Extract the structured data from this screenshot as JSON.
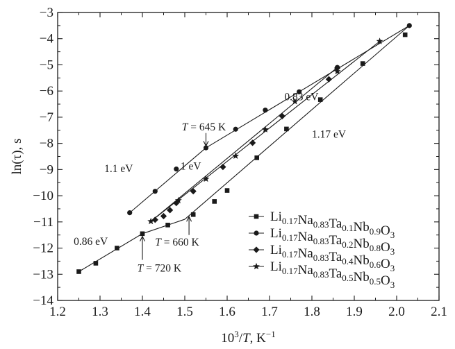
{
  "chart_data": {
    "type": "scatter",
    "xlabel": "10^3/T, K^-1",
    "ylabel": "ln(τ), s",
    "xlim": [
      1.2,
      2.1
    ],
    "ylim": [
      -14,
      -3
    ],
    "xticks": [
      1.2,
      1.3,
      1.4,
      1.5,
      1.6,
      1.7,
      1.8,
      1.9,
      2.0,
      2.1
    ],
    "yticks": [
      -3,
      -4,
      -5,
      -6,
      -7,
      -8,
      -9,
      -10,
      -11,
      -12,
      -13,
      -14
    ],
    "xtick_labels": [
      "1.2",
      "1.3",
      "1.4",
      "1.5",
      "1.6",
      "1.7",
      "1.8",
      "1.9",
      "2.0",
      "2.1"
    ],
    "ytick_labels": [
      "−3",
      "−4",
      "−5",
      "−6",
      "−7",
      "−8",
      "−9",
      "−10",
      "−11",
      "−12",
      "−13",
      "−14"
    ],
    "legend_position": "bottom-right",
    "series": [
      {
        "name": "Li0.17Na0.83Ta0.1Nb0.9O3",
        "legend": {
          "segments": [
            [
              "Li",
              "0.17"
            ],
            [
              "Na",
              "0.83"
            ],
            [
              "Ta",
              "0.1"
            ],
            [
              "Nb",
              "0.9"
            ],
            [
              "O",
              "3"
            ]
          ]
        },
        "marker": "square",
        "x": [
          1.25,
          1.29,
          1.34,
          1.4,
          1.46,
          1.52,
          1.57,
          1.6,
          1.67,
          1.74,
          1.82,
          1.92,
          2.02
        ],
        "y": [
          -12.9,
          -12.58,
          -12.0,
          -11.45,
          -11.12,
          -10.72,
          -10.22,
          -9.8,
          -8.55,
          -7.45,
          -6.33,
          -4.95,
          -3.85
        ],
        "fit_lines": [
          {
            "x": [
              1.25,
              1.4,
              1.5
            ],
            "y": [
              -12.9,
              -11.45,
              -10.9
            ]
          },
          {
            "x": [
              1.5,
              2.03
            ],
            "y": [
              -10.9,
              -3.5
            ]
          }
        ]
      },
      {
        "name": "Li0.17Na0.83Ta0.2Nb0.8O3",
        "legend": {
          "segments": [
            [
              "Li",
              "0.17"
            ],
            [
              "Na",
              "0.83"
            ],
            [
              "Ta",
              "0.2"
            ],
            [
              "Nb",
              "0.8"
            ],
            [
              "O",
              "3"
            ]
          ]
        },
        "marker": "circle",
        "x": [
          1.37,
          1.43,
          1.48,
          1.55,
          1.62,
          1.69,
          1.77,
          1.86,
          2.03
        ],
        "y": [
          -10.65,
          -9.83,
          -8.98,
          -8.17,
          -7.46,
          -6.73,
          -6.03,
          -5.1,
          -3.5
        ],
        "fit_lines": [
          {
            "x": [
              1.37,
              1.55
            ],
            "y": [
              -10.65,
              -8.17
            ]
          },
          {
            "x": [
              1.55,
              2.03
            ],
            "y": [
              -8.17,
              -3.5
            ]
          }
        ]
      },
      {
        "name": "Li0.17Na0.83Ta0.4Nb0.6O3",
        "legend": {
          "segments": [
            [
              "Li",
              "0.17"
            ],
            [
              "Na",
              "0.83"
            ],
            [
              "Ta",
              "0.4"
            ],
            [
              "Nb",
              "0.6"
            ],
            [
              "O",
              "3"
            ]
          ]
        },
        "marker": "diamond",
        "x": [
          1.43,
          1.45,
          1.465,
          1.48,
          1.52,
          1.59,
          1.66,
          1.73,
          1.84,
          1.86
        ],
        "y": [
          -10.92,
          -10.78,
          -10.55,
          -10.28,
          -9.83,
          -8.9,
          -7.98,
          -6.96,
          -5.55,
          -5.12
        ],
        "fit_lines": [
          {
            "x": [
              1.42,
              1.86
            ],
            "y": [
              -10.98,
              -5.1
            ]
          }
        ]
      },
      {
        "name": "Li0.17Na0.83Ta0.5Nb0.5O3",
        "legend": {
          "segments": [
            [
              "Li",
              "0.17"
            ],
            [
              "Na",
              "0.83"
            ],
            [
              "Ta",
              "0.5"
            ],
            [
              "Nb",
              "0.5"
            ],
            [
              "O",
              "3"
            ]
          ]
        },
        "marker": "star",
        "x": [
          1.42,
          1.485,
          1.55,
          1.62,
          1.69,
          1.76,
          1.86,
          1.96
        ],
        "y": [
          -10.98,
          -10.18,
          -9.36,
          -8.48,
          -7.47,
          -6.4,
          -5.25,
          -4.1
        ],
        "fit_lines": [
          {
            "x": [
              1.42,
              1.96
            ],
            "y": [
              -10.98,
              -4.1
            ]
          }
        ]
      }
    ],
    "annotations": [
      {
        "text": "0.83 eV",
        "x": 1.735,
        "y": -6.35,
        "anchor": "start"
      },
      {
        "text": "1.17 eV",
        "x": 1.8,
        "y": -7.78,
        "anchor": "start"
      },
      {
        "text": "T = 645 K",
        "x": 1.545,
        "y": -7.5,
        "anchor": "middle",
        "arrow_to": [
          1.55,
          -8.1
        ]
      },
      {
        "text": "1.1 eV",
        "x": 1.31,
        "y": -9.1,
        "anchor": "start"
      },
      {
        "text": "1 eV",
        "x": 1.49,
        "y": -9.0,
        "anchor": "start"
      },
      {
        "text": "T = 660 K",
        "x": 1.43,
        "y": -11.9,
        "anchor": "start",
        "arrow_to": [
          1.51,
          -10.8
        ],
        "arrow_from": [
          1.51,
          -11.5
        ]
      },
      {
        "text": "0.86 eV",
        "x": 1.238,
        "y": -11.88,
        "anchor": "start"
      },
      {
        "text": "T = 720 K",
        "x": 1.388,
        "y": -12.9,
        "anchor": "start",
        "arrow_to": [
          1.4,
          -11.55
        ],
        "arrow_from": [
          1.4,
          -12.45
        ]
      }
    ]
  }
}
